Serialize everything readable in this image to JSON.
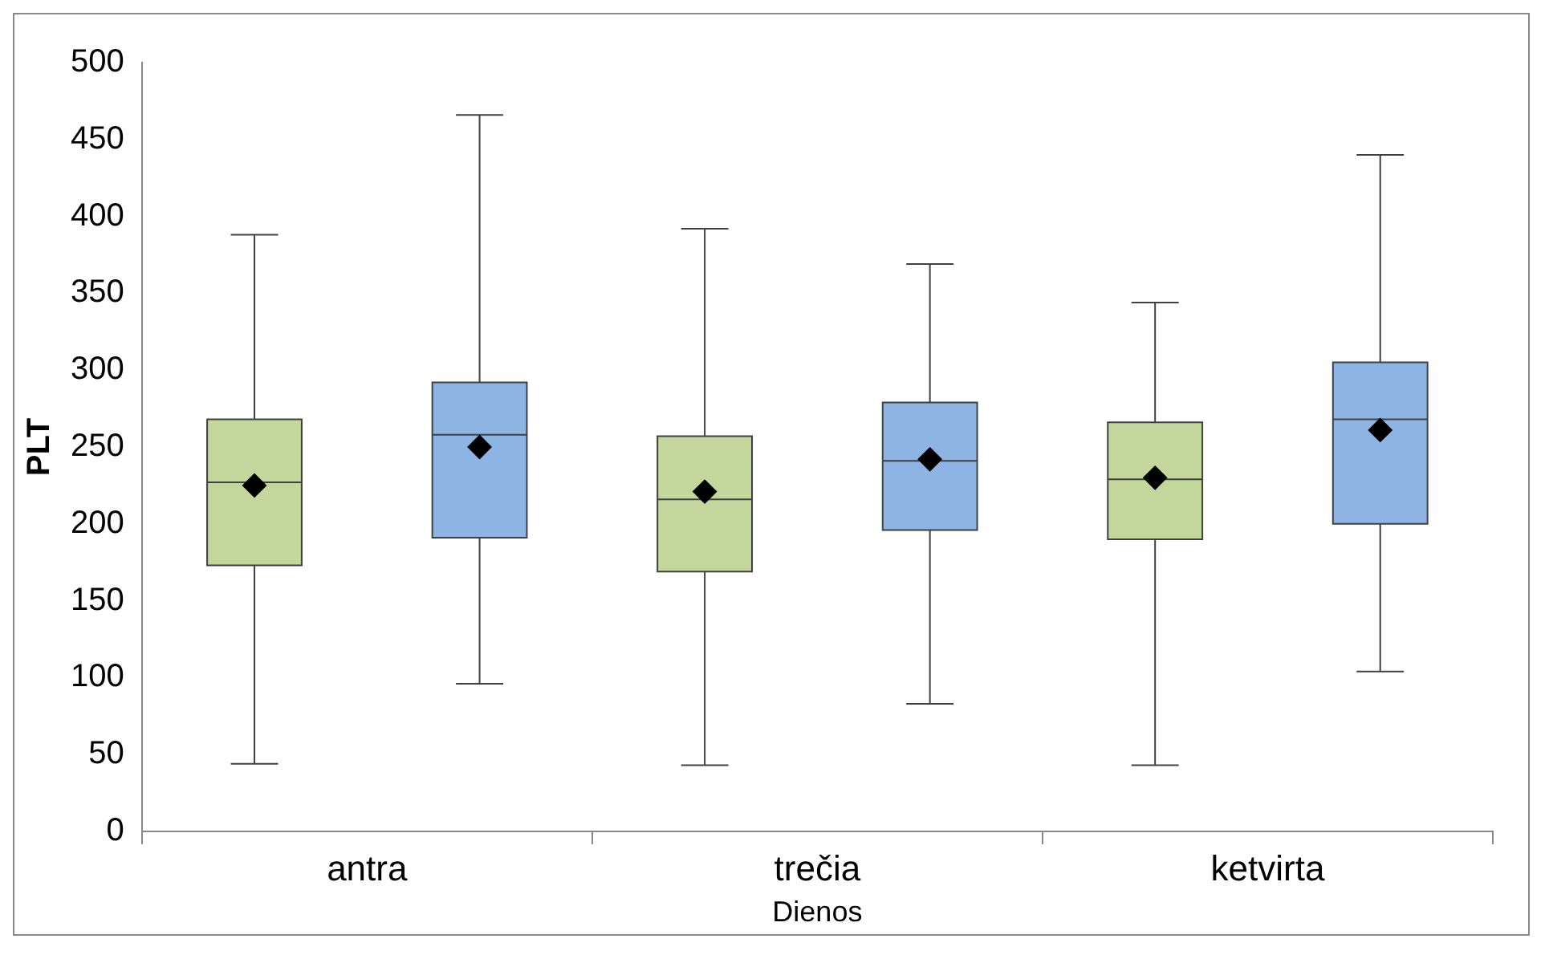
{
  "chart_data": {
    "type": "box",
    "xlabel": "Dienos",
    "ylabel": "PLT",
    "categories": [
      "antra",
      "trečia",
      "ketvirta"
    ],
    "ylim": [
      0,
      500
    ],
    "yticks": [
      0,
      50,
      100,
      150,
      200,
      250,
      300,
      350,
      400,
      450,
      500
    ],
    "legend": false,
    "marker": "diamond",
    "series": [
      {
        "color": "#c3d69b",
        "boxes": [
          {
            "low": 44,
            "q1": 173,
            "median": 227,
            "q3": 268,
            "high": 388,
            "mean": 225
          },
          {
            "low": 43,
            "q1": 169,
            "median": 216,
            "q3": 257,
            "high": 392,
            "mean": 221
          },
          {
            "low": 43,
            "q1": 190,
            "median": 229,
            "q3": 266,
            "high": 344,
            "mean": 230
          }
        ]
      },
      {
        "color": "#8db4e2",
        "boxes": [
          {
            "low": 96,
            "q1": 191,
            "median": 258,
            "q3": 292,
            "high": 466,
            "mean": 250
          },
          {
            "low": 83,
            "q1": 196,
            "median": 241,
            "q3": 279,
            "high": 369,
            "mean": 242
          },
          {
            "low": 104,
            "q1": 200,
            "median": 268,
            "q3": 305,
            "high": 440,
            "mean": 261
          }
        ]
      }
    ]
  }
}
